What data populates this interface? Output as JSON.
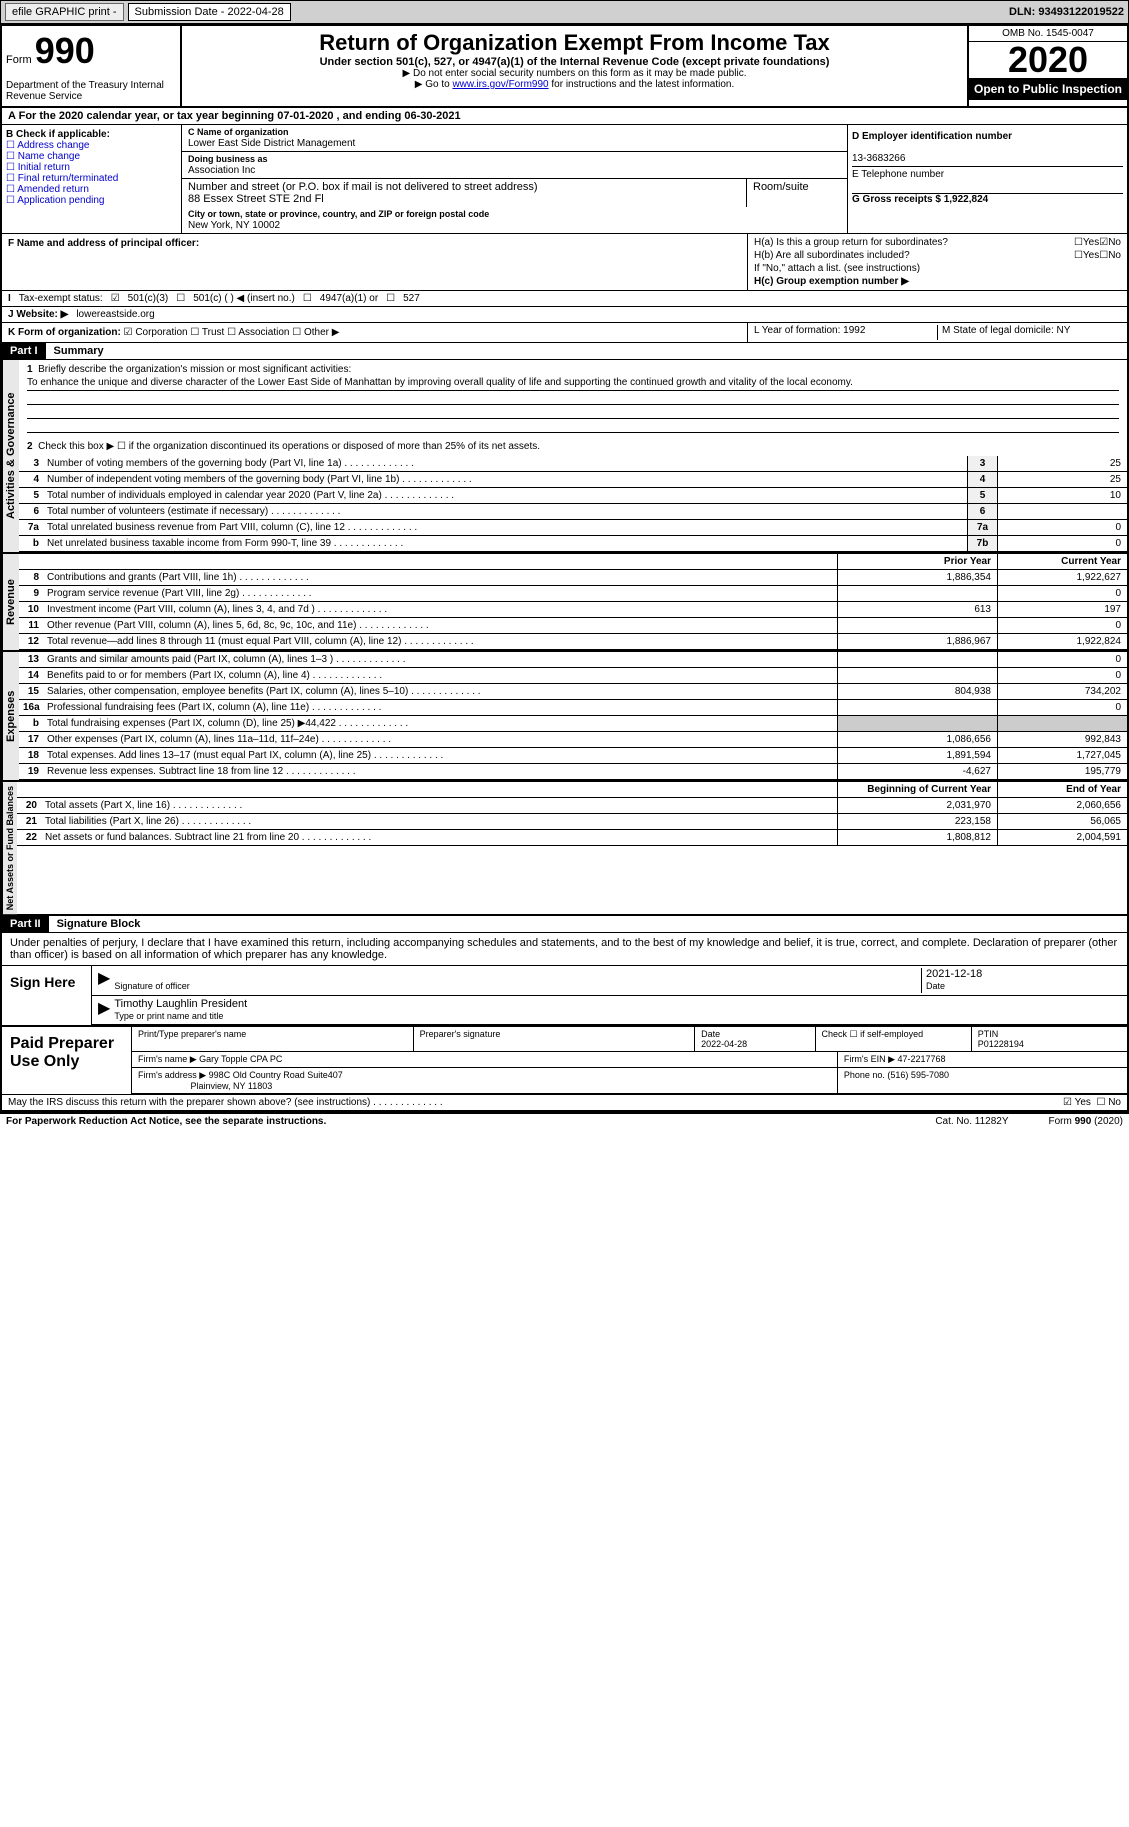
{
  "top_bar": {
    "efile": "efile GRAPHIC print -",
    "sub_date_label": "Submission Date - 2022-04-28",
    "dln": "DLN: 93493122019522"
  },
  "header": {
    "form_label": "Form",
    "form_num": "990",
    "dept": "Department of the Treasury\nInternal Revenue Service",
    "title": "Return of Organization Exempt From Income Tax",
    "subtitle": "Under section 501(c), 527, or 4947(a)(1) of the Internal Revenue Code (except private foundations)",
    "note1": "▶ Do not enter social security numbers on this form as it may be made public.",
    "note2_pre": "▶ Go to ",
    "note2_link": "www.irs.gov/Form990",
    "note2_post": " for instructions and the latest information.",
    "omb": "OMB No. 1545-0047",
    "year": "2020",
    "open": "Open to Public Inspection"
  },
  "line_a": "For the 2020 calendar year, or tax year beginning 07-01-2020    , and ending 06-30-2021",
  "checkboxes_b": {
    "title": "B Check if applicable:",
    "items": [
      "Address change",
      "Name change",
      "Initial return",
      "Final return/terminated",
      "Amended return",
      "Application pending"
    ]
  },
  "org": {
    "name_label": "C Name of organization",
    "name": "Lower East Side District Management",
    "dba_label": "Doing business as",
    "dba": "Association Inc",
    "addr_label": "Number and street (or P.O. box if mail is not delivered to street address)",
    "addr": "88 Essex Street STE 2nd Fl",
    "room_label": "Room/suite",
    "city_label": "City or town, state or province, country, and ZIP or foreign postal code",
    "city": "New York, NY  10002"
  },
  "ein": {
    "label": "D Employer identification number",
    "value": "13-3683266"
  },
  "phone": {
    "label": "E Telephone number",
    "value": ""
  },
  "gross": {
    "label": "G Gross receipts $ 1,922,824"
  },
  "officer": {
    "label": "F  Name and address of principal officer:"
  },
  "h": {
    "a": "H(a)  Is this a group return for subordinates?",
    "b": "H(b)  Are all subordinates included?",
    "b_note": "If \"No,\" attach a list. (see instructions)",
    "c": "H(c)  Group exemption number ▶",
    "yes": "Yes",
    "no": "No"
  },
  "status": {
    "label": "Tax-exempt status:",
    "opts": [
      "501(c)(3)",
      "501(c) (  ) ◀ (insert no.)",
      "4947(a)(1) or",
      "527"
    ]
  },
  "website": {
    "label": "J   Website: ▶",
    "value": "lowereastside.org"
  },
  "korg": {
    "label": "K Form of organization:",
    "opts": [
      "Corporation",
      "Trust",
      "Association",
      "Other ▶"
    ]
  },
  "l": "L Year of formation: 1992",
  "m": "M State of legal domicile: NY",
  "part1": {
    "header": "Part I",
    "title": "Summary",
    "q1": "Briefly describe the organization's mission or most significant activities:",
    "mission": "To enhance the unique and diverse character of the Lower East Side of Manhattan by improving overall quality of life and supporting the continued growth and vitality of the local economy.",
    "q2": "Check this box ▶ ☐  if the organization discontinued its operations or disposed of more than 25% of its net assets.",
    "sections": {
      "gov": "Activities & Governance",
      "rev": "Revenue",
      "exp": "Expenses",
      "net": "Net Assets or Fund Balances"
    },
    "col_prior": "Prior Year",
    "col_current": "Current Year",
    "col_begin": "Beginning of Current Year",
    "col_end": "End of Year",
    "lines_gov": [
      {
        "n": "3",
        "d": "Number of voting members of the governing body (Part VI, line 1a)",
        "box": "3",
        "v": "25"
      },
      {
        "n": "4",
        "d": "Number of independent voting members of the governing body (Part VI, line 1b)",
        "box": "4",
        "v": "25"
      },
      {
        "n": "5",
        "d": "Total number of individuals employed in calendar year 2020 (Part V, line 2a)",
        "box": "5",
        "v": "10"
      },
      {
        "n": "6",
        "d": "Total number of volunteers (estimate if necessary)",
        "box": "6",
        "v": ""
      },
      {
        "n": "7a",
        "d": "Total unrelated business revenue from Part VIII, column (C), line 12",
        "box": "7a",
        "v": "0"
      },
      {
        "n": "b",
        "d": "Net unrelated business taxable income from Form 990-T, line 39",
        "box": "7b",
        "v": "0"
      }
    ],
    "lines_rev": [
      {
        "n": "8",
        "d": "Contributions and grants (Part VIII, line 1h)",
        "p": "1,886,354",
        "c": "1,922,627"
      },
      {
        "n": "9",
        "d": "Program service revenue (Part VIII, line 2g)",
        "p": "",
        "c": "0"
      },
      {
        "n": "10",
        "d": "Investment income (Part VIII, column (A), lines 3, 4, and 7d )",
        "p": "613",
        "c": "197"
      },
      {
        "n": "11",
        "d": "Other revenue (Part VIII, column (A), lines 5, 6d, 8c, 9c, 10c, and 11e)",
        "p": "",
        "c": "0"
      },
      {
        "n": "12",
        "d": "Total revenue—add lines 8 through 11 (must equal Part VIII, column (A), line 12)",
        "p": "1,886,967",
        "c": "1,922,824"
      }
    ],
    "lines_exp": [
      {
        "n": "13",
        "d": "Grants and similar amounts paid (Part IX, column (A), lines 1–3 )",
        "p": "",
        "c": "0"
      },
      {
        "n": "14",
        "d": "Benefits paid to or for members (Part IX, column (A), line 4)",
        "p": "",
        "c": "0"
      },
      {
        "n": "15",
        "d": "Salaries, other compensation, employee benefits (Part IX, column (A), lines 5–10)",
        "p": "804,938",
        "c": "734,202"
      },
      {
        "n": "16a",
        "d": "Professional fundraising fees (Part IX, column (A), line 11e)",
        "p": "",
        "c": "0"
      },
      {
        "n": "b",
        "d": "Total fundraising expenses (Part IX, column (D), line 25) ▶44,422",
        "p": "",
        "c": "",
        "shaded": true
      },
      {
        "n": "17",
        "d": "Other expenses (Part IX, column (A), lines 11a–11d, 11f–24e)",
        "p": "1,086,656",
        "c": "992,843"
      },
      {
        "n": "18",
        "d": "Total expenses. Add lines 13–17 (must equal Part IX, column (A), line 25)",
        "p": "1,891,594",
        "c": "1,727,045"
      },
      {
        "n": "19",
        "d": "Revenue less expenses. Subtract line 18 from line 12",
        "p": "-4,627",
        "c": "195,779"
      }
    ],
    "lines_net": [
      {
        "n": "20",
        "d": "Total assets (Part X, line 16)",
        "p": "2,031,970",
        "c": "2,060,656"
      },
      {
        "n": "21",
        "d": "Total liabilities (Part X, line 26)",
        "p": "223,158",
        "c": "56,065"
      },
      {
        "n": "22",
        "d": "Net assets or fund balances. Subtract line 21 from line 20",
        "p": "1,808,812",
        "c": "2,004,591"
      }
    ]
  },
  "part2": {
    "header": "Part II",
    "title": "Signature Block",
    "perjury": "Under penalties of perjury, I declare that I have examined this return, including accompanying schedules and statements, and to the best of my knowledge and belief, it is true, correct, and complete. Declaration of preparer (other than officer) is based on all information of which preparer has any knowledge.",
    "sign_here": "Sign Here",
    "sig_officer": "Signature of officer",
    "sig_date": "2021-12-18",
    "date_label": "Date",
    "officer_name": "Timothy Laughlin  President",
    "type_name": "Type or print name and title"
  },
  "preparer": {
    "label": "Paid Preparer Use Only",
    "print_name": "Print/Type preparer's name",
    "sig": "Preparer's signature",
    "date_label": "Date",
    "date": "2022-04-28",
    "check": "Check ☐ if self-employed",
    "ptin_label": "PTIN",
    "ptin": "P01228194",
    "firm_name_label": "Firm's name    ▶",
    "firm_name": "Gary Topple CPA PC",
    "firm_ein_label": "Firm's EIN ▶",
    "firm_ein": "47-2217768",
    "firm_addr_label": "Firm's address ▶",
    "firm_addr": "998C Old Country Road Suite407",
    "firm_city": "Plainview, NY  11803",
    "phone_label": "Phone no.",
    "phone": "(516) 595-7080"
  },
  "footer": {
    "discuss": "May the IRS discuss this return with the preparer shown above? (see instructions)",
    "yes": "Yes",
    "no": "No",
    "paperwork": "For Paperwork Reduction Act Notice, see the separate instructions.",
    "cat": "Cat. No. 11282Y",
    "form": "Form 990 (2020)"
  }
}
